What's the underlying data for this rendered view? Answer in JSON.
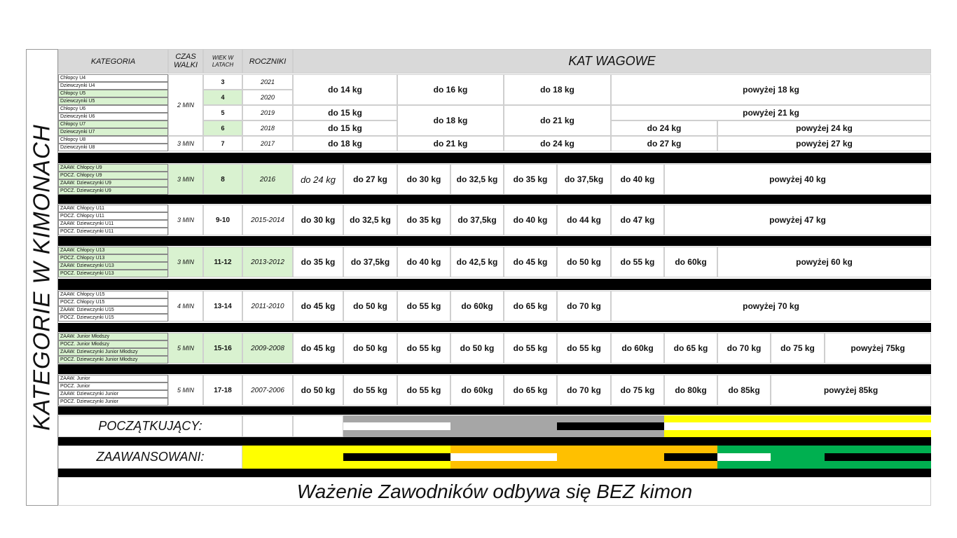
{
  "page": {
    "side_title": "KATEGORIE W KIMONACH",
    "footer": "Ważenie Zawodników odbywa się BEZ kimon",
    "legend_beginners": "POCZĄTKUJĄCY:",
    "legend_advanced": "ZAAWANSOWANI:"
  },
  "headers": {
    "kategoria": "KATEGORIA",
    "czas": "CZAS\nWALKI",
    "wiek": "WIEK W\nLATACH",
    "roczniki": "ROCZNIKI",
    "kat_wagowe": "KAT WAGOWE"
  },
  "colors": {
    "green": "#d9f2d0",
    "header": "#d9d9d9",
    "black": "#000000",
    "yellow": "#ffff00",
    "orange": "#ffc000",
    "grey": "#a6a6a6",
    "white": "#ffffff",
    "dark_green": "#00b050"
  },
  "young": {
    "categories": [
      "Chłopcy U4",
      "Dziewczynki U4",
      "Chłopcy U5",
      "Dziewczynki U5",
      "Chłopcy U6",
      "Dziewczynki U6",
      "Chłopcy U7",
      "Dziewczynki U7",
      "Chłopcy U8",
      "Dziewczynki U8"
    ],
    "time_a": "2 MIN",
    "time_b": "3 MIN",
    "ages": [
      "3",
      "4",
      "5",
      "6",
      "7"
    ],
    "years": [
      "2021",
      "2020",
      "2019",
      "2018",
      "2017"
    ],
    "row_u4u5": [
      "do 14 kg",
      "do 16 kg",
      "do 18 kg",
      "powyżej 18 kg"
    ],
    "row_u6": [
      "do 15 kg",
      "powyżej 21 kg"
    ],
    "row_u6u7_shared": [
      "do 18 kg",
      "do 21 kg"
    ],
    "row_u7": [
      "do 15 kg",
      "do 24 kg",
      "powyżej 24 kg"
    ],
    "row_u8": [
      "do 18 kg",
      "do 21 kg",
      "do 24 kg",
      "do 27 kg",
      "powyżej 27 kg"
    ]
  },
  "groups": [
    {
      "categories": [
        "ZAAW. Chłopcy U9",
        "POCZ. Chłopcy U9",
        "ZAAW. Dziewczynki U9",
        "POCZ. Dziewczynki U9"
      ],
      "time": "3 MIN",
      "age": "8",
      "years": "2016",
      "weights": [
        "do 24 kg",
        "do 27 kg",
        "do 30 kg",
        "do 32,5 kg",
        "do 35 kg",
        "do 37,5kg",
        "do 40 kg",
        "powyżej 40 kg"
      ]
    },
    {
      "categories": [
        "ZAAW. Chłopcy U11",
        "POCZ. Chłopcy U11",
        "ZAAW. Dziewczynki U11",
        "POCZ. Dziewczynki U11"
      ],
      "time": "3 MIN",
      "age": "9-10",
      "years": "2015-2014",
      "weights": [
        "do 30 kg",
        "do 32,5 kg",
        "do 35 kg",
        "do 37,5kg",
        "do 40 kg",
        "do 44 kg",
        "do 47 kg",
        "powyżej 47 kg"
      ]
    },
    {
      "categories": [
        "ZAAW. Chłopcy U13",
        "POCZ. Chłopcy U13",
        "ZAAW. Dziewczynki U13",
        "POCZ. Dziewczynki U13"
      ],
      "time": "3 MIN",
      "age": "11-12",
      "years": "2013-2012",
      "weights": [
        "do 35 kg",
        "do 37,5kg",
        "do 40 kg",
        "do 42,5 kg",
        "do 45 kg",
        "do 50 kg",
        "do 55 kg",
        "do 60kg",
        "powyżej 60 kg"
      ]
    },
    {
      "categories": [
        "ZAAW. Chłopcy U15",
        "POCZ. Chłopcy U15",
        "ZAAW. Dziewczynki U15",
        "POCZ. Dziewczynki U15"
      ],
      "time": "4 MIN",
      "age": "13-14",
      "years": "2011-2010",
      "weights": [
        "do 45 kg",
        "do 50 kg",
        "do 55 kg",
        "do 60kg",
        "do 65 kg",
        "do 70 kg",
        "powyżej 70 kg"
      ]
    },
    {
      "categories": [
        "ZAAW. Junior Młodszy",
        "POCZ. Junior Młodszy",
        "ZAAW. Dziewczynki Junior Młodszy",
        "POCZ. Dziewczynki Junior Młodszy"
      ],
      "time": "5 MIN",
      "age": "15-16",
      "years": "2009-2008",
      "weights": [
        "do 45 kg",
        "do 50 kg",
        "do 55 kg",
        "do 50 kg",
        "do 55 kg",
        "do 55 kg",
        "do 60kg",
        "do 65 kg",
        "do 70 kg",
        "do 75 kg",
        "powyżej 75kg"
      ]
    },
    {
      "categories": [
        "ZAAW. Junior",
        "POCZ. Junior",
        "ZAAW. Dziewczynki Junior",
        "POCZ. Dziewczynki Junior"
      ],
      "time": "5 MIN",
      "age": "17-18",
      "years": "2007-2006",
      "weights": [
        "do 50 kg",
        "do 55 kg",
        "do 55 kg",
        "do 60kg",
        "do 65 kg",
        "do 70 kg",
        "do 75 kg",
        "do 80kg",
        "do 85kg",
        "powyżej 85kg"
      ]
    }
  ],
  "belts": {
    "beginners": [
      "white",
      "white-yellow",
      "grey-white",
      "grey",
      "grey-black",
      "yellow-white"
    ],
    "advanced": [
      "yellow",
      "yellow-black",
      "orange-white",
      "orange",
      "orange-black",
      "green-white",
      "green",
      "green-black"
    ]
  }
}
